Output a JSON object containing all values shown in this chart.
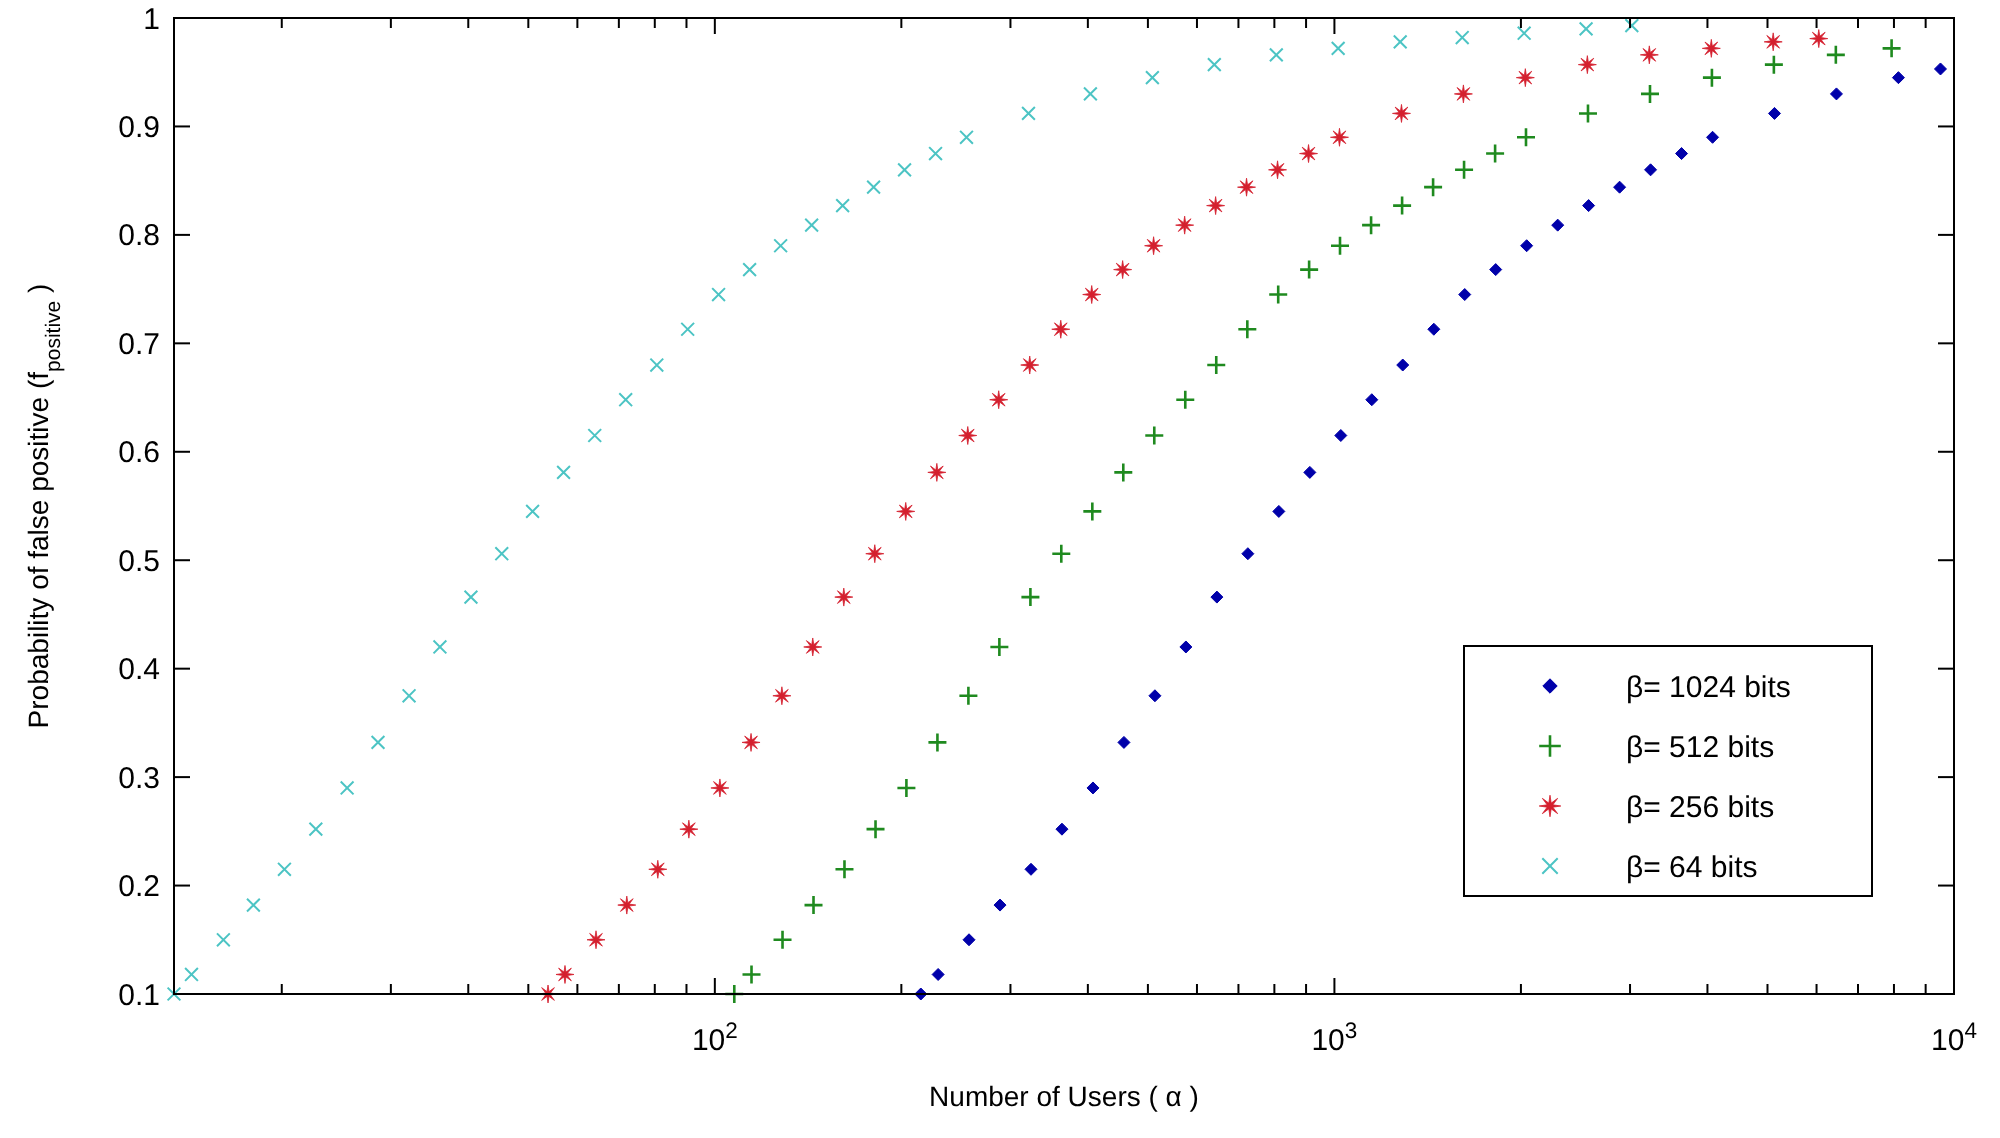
{
  "chart_data": {
    "type": "scatter",
    "xlabel": "Number of Users ( α )",
    "ylabel": "Probability of false positive (f$_{positive}$ )",
    "log": "x",
    "grid": false,
    "legend": "bottom right",
    "xlim": [
      13.4,
      10000
    ],
    "ylim": [
      0.1,
      1
    ],
    "xticks": [
      {
        "value": 20,
        "label": null
      },
      {
        "value": 30,
        "label": null
      },
      {
        "value": 40,
        "label": null
      },
      {
        "value": 50,
        "label": null
      },
      {
        "value": 60,
        "label": null
      },
      {
        "value": 70,
        "label": null
      },
      {
        "value": 80,
        "label": null
      },
      {
        "value": 90,
        "label": null
      },
      {
        "value": 100,
        "label": "10$^{2}$"
      },
      {
        "value": 200,
        "label": null
      },
      {
        "value": 300,
        "label": null
      },
      {
        "value": 400,
        "label": null
      },
      {
        "value": 500,
        "label": null
      },
      {
        "value": 600,
        "label": null
      },
      {
        "value": 700,
        "label": null
      },
      {
        "value": 800,
        "label": null
      },
      {
        "value": 900,
        "label": null
      },
      {
        "value": 1000,
        "label": "10$^{3}$"
      },
      {
        "value": 2000,
        "label": null
      },
      {
        "value": 3000,
        "label": null
      },
      {
        "value": 4000,
        "label": null
      },
      {
        "value": 5000,
        "label": null
      },
      {
        "value": 6000,
        "label": null
      },
      {
        "value": 7000,
        "label": null
      },
      {
        "value": 8000,
        "label": null
      },
      {
        "value": 9000,
        "label": null
      },
      {
        "value": 10000,
        "label": "10$^{4}$"
      }
    ],
    "yticks": [
      0.1,
      0.2,
      0.3,
      0.4,
      0.5,
      0.6,
      0.7,
      0.8,
      0.9,
      1
    ],
    "series": [
      {
        "name": "β= 1024 bits",
        "color": "#0000aa",
        "marker": "diamond",
        "x": [
          215,
          229.3,
          257.2,
          288.6,
          323.8,
          363.3,
          407.7,
          457.4,
          513.2,
          575.8,
          646.1,
          724.9,
          813.4,
          912.7,
          1024,
          1149,
          1289,
          1447,
          1623,
          1821,
          2043,
          2293,
          2572,
          2886,
          3238,
          3633,
          4077,
          5132,
          6461,
          8134,
          9510
        ],
        "values": [
          0.1,
          0.118,
          0.15,
          0.182,
          0.215,
          0.252,
          0.29,
          0.332,
          0.375,
          0.42,
          0.466,
          0.506,
          0.545,
          0.581,
          0.615,
          0.648,
          0.68,
          0.713,
          0.745,
          0.768,
          0.79,
          0.809,
          0.827,
          0.844,
          0.86,
          0.875,
          0.89,
          0.912,
          0.93,
          0.945,
          0.953
        ]
      },
      {
        "name": "β= 512 bits",
        "color": "#1f8a1f",
        "marker": "cross",
        "x": [
          107.5,
          114.6,
          128.6,
          144.3,
          161.9,
          181.7,
          203.8,
          228.7,
          256.6,
          287.9,
          323.1,
          362.4,
          406.7,
          456.3,
          512,
          574.5,
          644.6,
          723.5,
          811.5,
          910.3,
          1021,
          1146,
          1286,
          1443,
          1619,
          1817,
          2038,
          2566,
          3231,
          4067,
          5120,
          6446,
          7930
        ],
        "values": [
          0.1,
          0.118,
          0.15,
          0.182,
          0.215,
          0.252,
          0.29,
          0.332,
          0.375,
          0.42,
          0.466,
          0.506,
          0.545,
          0.581,
          0.615,
          0.648,
          0.68,
          0.713,
          0.745,
          0.768,
          0.79,
          0.809,
          0.827,
          0.844,
          0.86,
          0.875,
          0.89,
          0.912,
          0.93,
          0.945,
          0.957,
          0.966,
          0.972
        ]
      },
      {
        "name": "β= 256 bits",
        "color": "#d4202e",
        "marker": "star",
        "x": [
          53.8,
          57.3,
          64.3,
          72.1,
          80.9,
          90.8,
          101.9,
          114.4,
          128.3,
          143.9,
          161.5,
          181.2,
          203.3,
          228.2,
          256,
          287.2,
          322.3,
          361.7,
          405.8,
          455.2,
          510.7,
          573.2,
          643.1,
          721.4,
          809.5,
          908.3,
          1019,
          1283,
          1615,
          2033,
          2560,
          3223,
          4058,
          5107,
          6050
        ],
        "values": [
          0.1,
          0.118,
          0.15,
          0.182,
          0.215,
          0.252,
          0.29,
          0.332,
          0.375,
          0.42,
          0.466,
          0.506,
          0.545,
          0.581,
          0.615,
          0.648,
          0.68,
          0.713,
          0.745,
          0.768,
          0.79,
          0.809,
          0.827,
          0.844,
          0.86,
          0.875,
          0.89,
          0.912,
          0.93,
          0.945,
          0.957,
          0.966,
          0.972,
          0.978,
          0.981
        ]
      },
      {
        "name": "β= 64 bits",
        "color": "#4cc4c4",
        "marker": "x",
        "x": [
          13.4,
          14.3,
          16.1,
          18.0,
          20.2,
          22.7,
          25.5,
          28.6,
          32.1,
          36.0,
          40.4,
          45.3,
          50.8,
          57.0,
          64,
          71.8,
          80.6,
          90.4,
          101.4,
          113.8,
          127.7,
          143.3,
          160.8,
          180.4,
          202.4,
          227.1,
          254.8,
          320.8,
          403.8,
          508.4,
          640,
          805.8,
          1014,
          1277,
          1608,
          2024,
          2548,
          3020
        ],
        "values": [
          0.1,
          0.118,
          0.15,
          0.182,
          0.215,
          0.252,
          0.29,
          0.332,
          0.375,
          0.42,
          0.466,
          0.506,
          0.545,
          0.581,
          0.615,
          0.648,
          0.68,
          0.713,
          0.745,
          0.768,
          0.79,
          0.809,
          0.827,
          0.844,
          0.86,
          0.875,
          0.89,
          0.912,
          0.93,
          0.945,
          0.957,
          0.966,
          0.972,
          0.978,
          0.982,
          0.986,
          0.99,
          0.993
        ]
      }
    ]
  }
}
